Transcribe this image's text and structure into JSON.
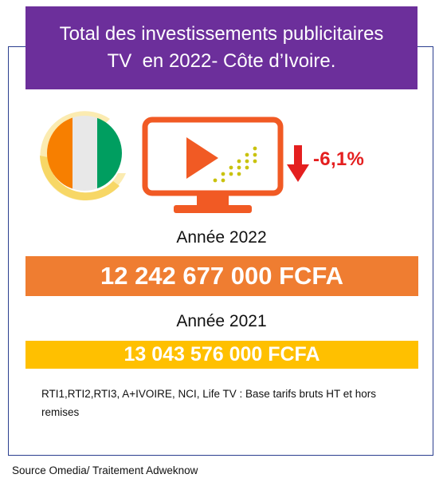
{
  "title": {
    "line1": "Total des investissements publicitaires",
    "line2": "TV  en 2022- Côte d’Ivoire."
  },
  "change": {
    "text": "-6,1%",
    "icon": "down-arrow-icon",
    "color": "#e41f1f"
  },
  "year_2022": {
    "label": "Année 2022",
    "amount": "12 242 677 000 FCFA",
    "color": "#ef7d31"
  },
  "year_2021": {
    "label": "Année 2021",
    "amount": "13 043 576 000 FCFA",
    "color": "#ffc000"
  },
  "note": "RTI1,RTI2,RTI3, A+IVOIRE, NCI, Life TV : Base tarifs bruts HT et hors remises",
  "source": "Source Omedia/ Traitement Adweknow",
  "icons": {
    "flag": "cote-divoire-flag-icon",
    "tv": "television-play-icon"
  },
  "colors": {
    "title_bg": "#6c2f9b",
    "frame": "#2b3f8f",
    "tv": "#f15a24",
    "flag_orange": "#f77f00",
    "flag_white": "#ffffff",
    "flag_green": "#009e60"
  }
}
